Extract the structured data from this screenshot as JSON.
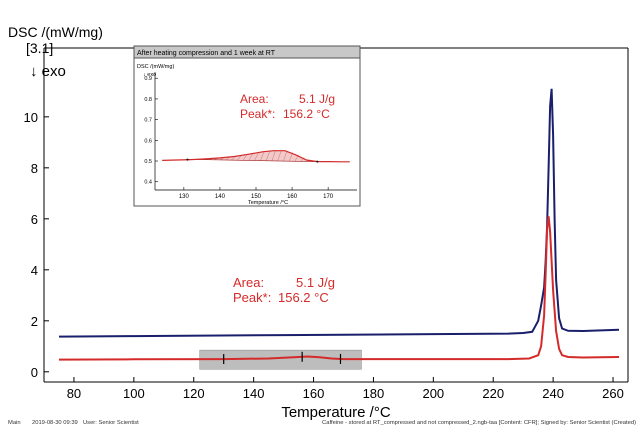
{
  "chart_data": {
    "type": "line",
    "xlabel": "Temperature /°C",
    "ylabel": "DSC /(mW/mg)",
    "ylabel_index": "[3.1]",
    "exo_label": "↓ exo",
    "xlim": [
      70,
      265
    ],
    "ylim": [
      -0.4,
      12.7
    ],
    "xticks": [
      80,
      100,
      120,
      140,
      160,
      180,
      200,
      220,
      240,
      260
    ],
    "yticks": [
      0,
      2,
      4,
      6,
      8,
      10
    ],
    "grid": false,
    "series": [
      {
        "color": "#1a1f6b",
        "x": [
          75,
          100,
          150,
          200,
          225,
          230,
          233,
          235,
          236,
          237,
          237.5,
          238,
          238.5,
          239,
          239.5,
          240,
          240.5,
          241,
          242,
          243,
          245,
          250,
          262
        ],
        "y": [
          1.38,
          1.4,
          1.44,
          1.48,
          1.5,
          1.52,
          1.57,
          2.0,
          2.6,
          3.3,
          4.3,
          5.7,
          8.0,
          10.4,
          11.1,
          9.3,
          6.0,
          3.6,
          2.1,
          1.7,
          1.61,
          1.6,
          1.65
        ]
      },
      {
        "color": "#d42a2a",
        "x": [
          75,
          100,
          130,
          145,
          150,
          155,
          158,
          162,
          166,
          170,
          200,
          225,
          232,
          235,
          236,
          237,
          237.5,
          238,
          238.5,
          239,
          240,
          241,
          242,
          243,
          245,
          250,
          262
        ],
        "y": [
          0.48,
          0.49,
          0.5,
          0.52,
          0.55,
          0.58,
          0.6,
          0.57,
          0.52,
          0.5,
          0.5,
          0.5,
          0.52,
          0.65,
          1.0,
          2.2,
          3.8,
          5.6,
          6.1,
          5.5,
          3.2,
          1.6,
          0.9,
          0.65,
          0.58,
          0.56,
          0.58
        ]
      }
    ],
    "integration_window": {
      "x_start": 122,
      "x_end": 176,
      "y_low": 0.1,
      "y_high": 0.85,
      "markers": [
        130,
        156.2,
        169
      ]
    },
    "annotation": {
      "area_label": "Area:",
      "area_value": "5.1 J/g",
      "peak_label": "Peak*:",
      "peak_value": "156.2 °C",
      "color": "#d42a2a"
    },
    "inset": {
      "title": "After heating compression and 1 week at RT",
      "ylabel": "DSC /(mW/mg)",
      "exo_label": "↓ exo",
      "xlabel": "Temperature /°C",
      "xlim": [
        122,
        178
      ],
      "ylim": [
        0.36,
        0.93
      ],
      "xticks": [
        130,
        140,
        150,
        160,
        170
      ],
      "yticks": [
        0.4,
        0.5,
        0.6,
        0.7,
        0.8,
        0.9
      ],
      "series": {
        "color": "#d42a2a",
        "x": [
          124,
          128,
          132,
          136,
          140,
          144,
          148,
          152,
          155,
          158,
          161,
          164,
          167,
          170,
          174,
          176
        ],
        "y": [
          0.503,
          0.505,
          0.507,
          0.51,
          0.515,
          0.522,
          0.533,
          0.545,
          0.55,
          0.55,
          0.53,
          0.505,
          0.497,
          0.497,
          0.496,
          0.496
        ]
      },
      "baseline": {
        "x": [
          131,
          167
        ],
        "y": [
          0.508,
          0.497
        ]
      },
      "annotation": {
        "area_label": "Area:",
        "area_value": "5.1 J/g",
        "peak_label": "Peak*:",
        "peak_value": "156.2 °C"
      }
    }
  },
  "footer": {
    "main": "Main",
    "datetime": "2019-08-30 09:39",
    "user": "User: Senior Scientist",
    "file": "Caffeine - stored at RT_compressed and not compressed_2.ngb-taa [Content: CFR]; Signed by: Senior Scientist (Created)"
  }
}
